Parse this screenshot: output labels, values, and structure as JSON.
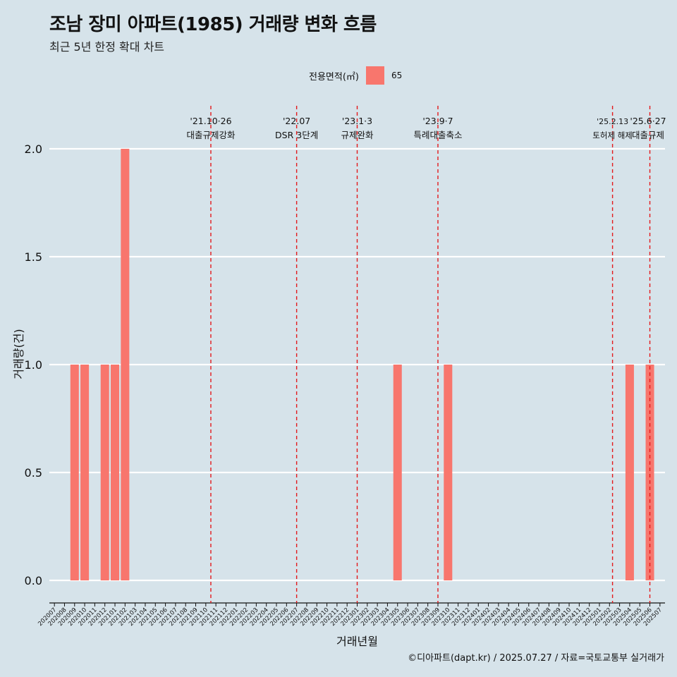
{
  "title": "조남 장미 아파트(1985) 거래량 변화 흐름",
  "subtitle": "최근 5년 한정 확대 차트",
  "caption": "©디아파트(dapt.kr) / 2025.07.27 / 자료=국토교통부 실거래가",
  "legend": {
    "title": "전용면적(㎡)",
    "items": [
      {
        "label": "65",
        "color": "#f8766d"
      }
    ]
  },
  "chart_data": {
    "type": "bar",
    "xlabel": "거래년월",
    "ylabel": "거래량(건)",
    "ylim": [
      0,
      2
    ],
    "yticks": [
      "0.0",
      "0.5",
      "1.0",
      "1.5",
      "2.0"
    ],
    "grid": true,
    "legend_position": "top",
    "categories": [
      "202007",
      "202008",
      "202009",
      "202010",
      "202011",
      "202012",
      "202101",
      "202102",
      "202103",
      "202104",
      "202105",
      "202106",
      "202107",
      "202108",
      "202109",
      "202110",
      "202111",
      "202112",
      "202201",
      "202202",
      "202203",
      "202204",
      "202205",
      "202206",
      "202207",
      "202208",
      "202209",
      "202210",
      "202211",
      "202212",
      "202301",
      "202302",
      "202303",
      "202304",
      "202305",
      "202306",
      "202307",
      "202308",
      "202309",
      "202310",
      "202311",
      "202312",
      "202401",
      "202402",
      "202403",
      "202404",
      "202405",
      "202406",
      "202407",
      "202408",
      "202409",
      "202410",
      "202411",
      "202412",
      "202501",
      "202502",
      "202503",
      "202504",
      "202505",
      "202506",
      "202507"
    ],
    "series": [
      {
        "name": "65",
        "color": "#f8766d",
        "values": [
          0,
          0,
          1,
          1,
          0,
          1,
          1,
          2,
          0,
          0,
          0,
          0,
          0,
          0,
          0,
          0,
          0,
          0,
          0,
          0,
          0,
          0,
          0,
          0,
          0,
          0,
          0,
          0,
          0,
          0,
          0,
          0,
          0,
          0,
          1,
          0,
          0,
          0,
          0,
          1,
          0,
          0,
          0,
          0,
          0,
          0,
          0,
          0,
          0,
          0,
          0,
          0,
          0,
          0,
          0,
          0,
          0,
          1,
          0,
          1,
          0
        ]
      }
    ],
    "annotations": [
      {
        "date": "'21.10·26",
        "label": "대출규제강화",
        "x": "202110.5"
      },
      {
        "date": "'22.07",
        "label": "DSR 3단계",
        "x": "202207"
      },
      {
        "date": "'23.1·3",
        "label": "규제완화",
        "x": "202301"
      },
      {
        "date": "'23.9·7",
        "label": "특례대출축소",
        "x": "202309"
      },
      {
        "date": "'25.2.13",
        "label": "토허제 해제",
        "x": "202502.3"
      },
      {
        "date": "'25.6·27",
        "label": "대출규제",
        "x": "202506"
      }
    ]
  }
}
